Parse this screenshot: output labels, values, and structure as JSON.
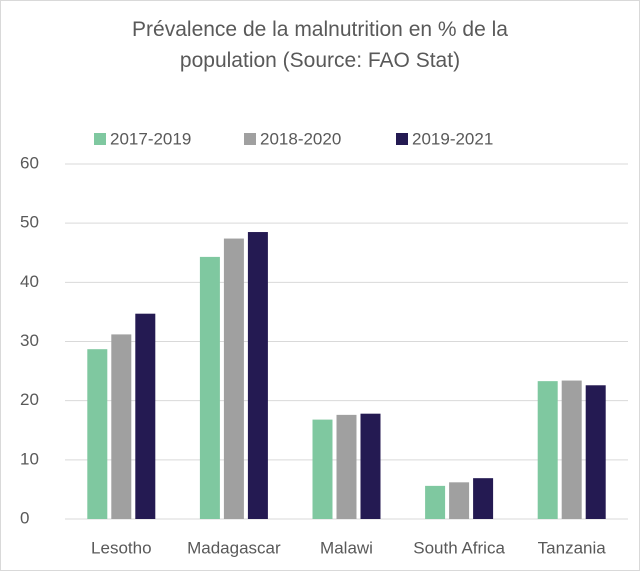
{
  "chart_data": {
    "type": "bar",
    "title": "Prévalence de la malnutrition en % de la population (Source: FAO Stat)",
    "categories": [
      "Lesotho",
      "Madagascar",
      "Malawi",
      "South Africa",
      "Tanzania"
    ],
    "series": [
      {
        "name": "2017-2019",
        "color": "#7fc8a0",
        "values": [
          28.7,
          44.3,
          16.8,
          5.6,
          23.3
        ]
      },
      {
        "name": "2018-2020",
        "color": "#a0a0a0",
        "values": [
          31.2,
          47.4,
          17.6,
          6.2,
          23.4
        ]
      },
      {
        "name": "2019-2021",
        "color": "#241a52",
        "values": [
          34.7,
          48.5,
          17.8,
          6.9,
          22.6
        ]
      }
    ],
    "ylim": [
      0,
      60
    ],
    "yticks": [
      0,
      10,
      20,
      30,
      40,
      50,
      60
    ],
    "grid": true,
    "legend": "top"
  }
}
